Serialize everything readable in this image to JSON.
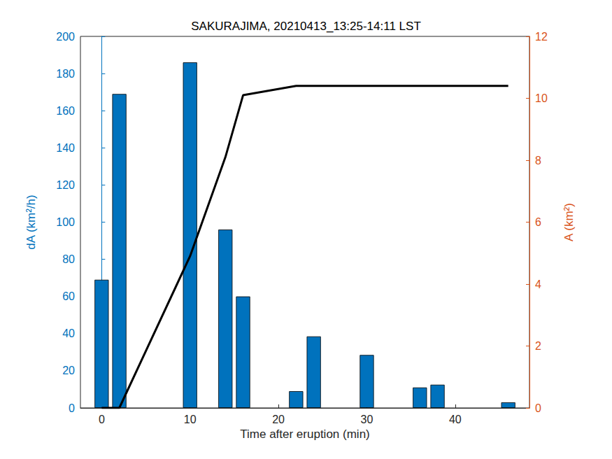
{
  "chart_data": {
    "type": "bar",
    "title": "SAKURAJIMA, 20210413_13:25-14:11 LST",
    "x_label": "Time after eruption (min)",
    "y_label": "dA (km²/h)",
    "y2_label": "A (km²)",
    "xlim": [
      -2.4,
      48.4
    ],
    "xticks": [
      0,
      10,
      20,
      30,
      40
    ],
    "ylim": [
      0,
      200
    ],
    "yticks": [
      0,
      20,
      40,
      60,
      80,
      100,
      120,
      140,
      160,
      180,
      200
    ],
    "y2lim": [
      0,
      12
    ],
    "y2ticks": [
      0,
      2,
      4,
      6,
      8,
      10,
      12
    ],
    "grid": false,
    "series": [
      {
        "type": "bar",
        "color": "#0072bd",
        "x": [
          0,
          2,
          10,
          14,
          16,
          22,
          24,
          30,
          36,
          38,
          46
        ],
        "values": [
          69,
          169,
          186,
          96,
          60,
          9,
          38.5,
          28.5,
          11,
          12.5,
          3
        ]
      },
      {
        "type": "line",
        "color": "#000000",
        "axis": "y2",
        "x": [
          0,
          2,
          10,
          14,
          16,
          22,
          46
        ],
        "values": [
          0,
          0,
          4.9,
          8.1,
          10.1,
          10.4,
          10.4
        ]
      }
    ]
  }
}
